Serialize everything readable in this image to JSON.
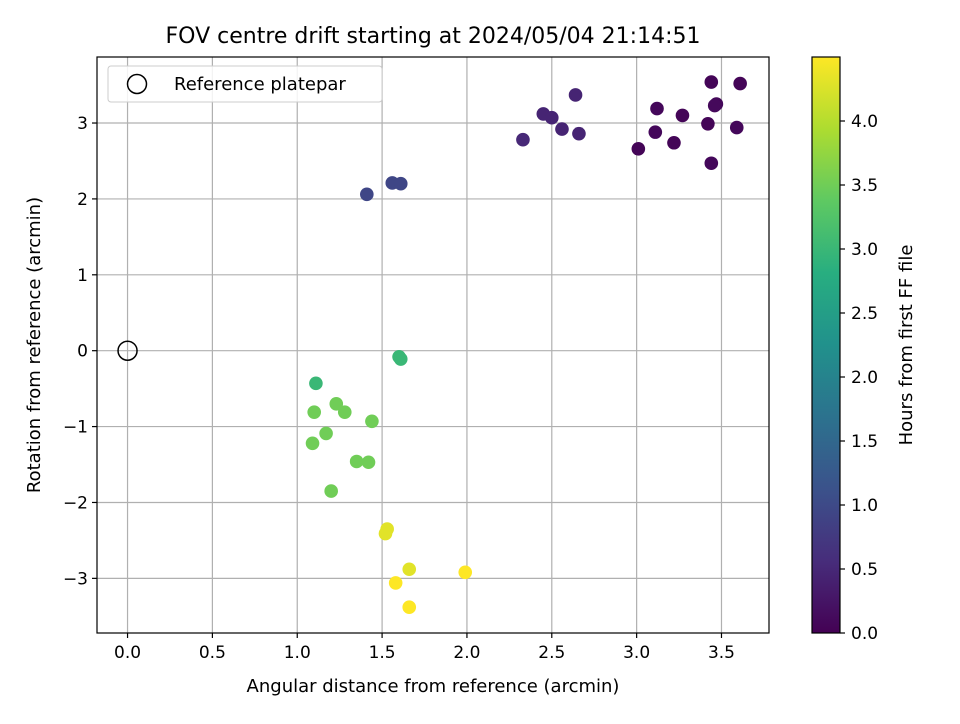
{
  "chart_data": {
    "type": "scatter",
    "title": "FOV centre drift starting at 2024/05/04 21:14:51",
    "xlabel": "Angular distance from reference (arcmin)",
    "ylabel": "Rotation from reference (arcmin)",
    "xlim": [
      -0.18,
      3.78
    ],
    "ylim": [
      -3.72,
      3.87
    ],
    "xticks": [
      0.0,
      0.5,
      1.0,
      1.5,
      2.0,
      2.5,
      3.0,
      3.5
    ],
    "xtick_labels": [
      "0.0",
      "0.5",
      "1.0",
      "1.5",
      "2.0",
      "2.5",
      "3.0",
      "3.5"
    ],
    "yticks": [
      -3,
      -2,
      -1,
      0,
      1,
      2,
      3
    ],
    "ytick_labels": [
      "−3",
      "−2",
      "−1",
      "0",
      "1",
      "2",
      "3"
    ],
    "grid": true,
    "legend": {
      "position": "top-left",
      "entries": [
        {
          "label": "Reference platepar",
          "marker": "open-circle"
        }
      ]
    },
    "reference_point": {
      "x": 0.0,
      "y": 0.0
    },
    "colorbar": {
      "label": "Hours from first FF file",
      "colormap": "viridis",
      "range": [
        0.0,
        4.5
      ],
      "ticks": [
        0.0,
        0.5,
        1.0,
        1.5,
        2.0,
        2.5,
        3.0,
        3.5,
        4.0
      ],
      "tick_labels": [
        "0.0",
        "0.5",
        "1.0",
        "1.5",
        "2.0",
        "2.5",
        "3.0",
        "3.5",
        "4.0"
      ]
    },
    "points": [
      {
        "x": 3.44,
        "y": 3.54,
        "hours": 0.05
      },
      {
        "x": 3.61,
        "y": 3.52,
        "hours": 0.05
      },
      {
        "x": 3.47,
        "y": 3.25,
        "hours": 0.08
      },
      {
        "x": 3.46,
        "y": 3.23,
        "hours": 0.1
      },
      {
        "x": 3.12,
        "y": 3.19,
        "hours": 0.08
      },
      {
        "x": 3.27,
        "y": 3.1,
        "hours": 0.05
      },
      {
        "x": 3.42,
        "y": 2.99,
        "hours": 0.05
      },
      {
        "x": 3.59,
        "y": 2.94,
        "hours": 0.08
      },
      {
        "x": 3.11,
        "y": 2.88,
        "hours": 0.08
      },
      {
        "x": 3.22,
        "y": 2.74,
        "hours": 0.05
      },
      {
        "x": 3.01,
        "y": 2.66,
        "hours": 0.05
      },
      {
        "x": 3.44,
        "y": 2.47,
        "hours": 0.08
      },
      {
        "x": 2.64,
        "y": 3.37,
        "hours": 0.45
      },
      {
        "x": 2.45,
        "y": 3.12,
        "hours": 0.45
      },
      {
        "x": 2.5,
        "y": 3.07,
        "hours": 0.45
      },
      {
        "x": 2.56,
        "y": 2.92,
        "hours": 0.45
      },
      {
        "x": 2.66,
        "y": 2.86,
        "hours": 0.45
      },
      {
        "x": 2.33,
        "y": 2.78,
        "hours": 0.5
      },
      {
        "x": 1.56,
        "y": 2.21,
        "hours": 0.95
      },
      {
        "x": 1.61,
        "y": 2.2,
        "hours": 0.95
      },
      {
        "x": 1.41,
        "y": 2.06,
        "hours": 0.95
      },
      {
        "x": 1.6,
        "y": -0.08,
        "hours": 3.0
      },
      {
        "x": 1.61,
        "y": -0.11,
        "hours": 3.0
      },
      {
        "x": 1.11,
        "y": -0.43,
        "hours": 3.0
      },
      {
        "x": 1.23,
        "y": -0.7,
        "hours": 3.5
      },
      {
        "x": 1.1,
        "y": -0.81,
        "hours": 3.5
      },
      {
        "x": 1.28,
        "y": -0.81,
        "hours": 3.5
      },
      {
        "x": 1.44,
        "y": -0.93,
        "hours": 3.5
      },
      {
        "x": 1.17,
        "y": -1.09,
        "hours": 3.5
      },
      {
        "x": 1.09,
        "y": -1.22,
        "hours": 3.5
      },
      {
        "x": 1.35,
        "y": -1.46,
        "hours": 3.5
      },
      {
        "x": 1.42,
        "y": -1.47,
        "hours": 3.5
      },
      {
        "x": 1.2,
        "y": -1.85,
        "hours": 3.5
      },
      {
        "x": 1.53,
        "y": -2.35,
        "hours": 4.3
      },
      {
        "x": 1.52,
        "y": -2.41,
        "hours": 4.3
      },
      {
        "x": 1.66,
        "y": -2.88,
        "hours": 4.3
      },
      {
        "x": 1.99,
        "y": -2.92,
        "hours": 4.5
      },
      {
        "x": 1.58,
        "y": -3.06,
        "hours": 4.5
      },
      {
        "x": 1.66,
        "y": -3.38,
        "hours": 4.5
      }
    ]
  }
}
